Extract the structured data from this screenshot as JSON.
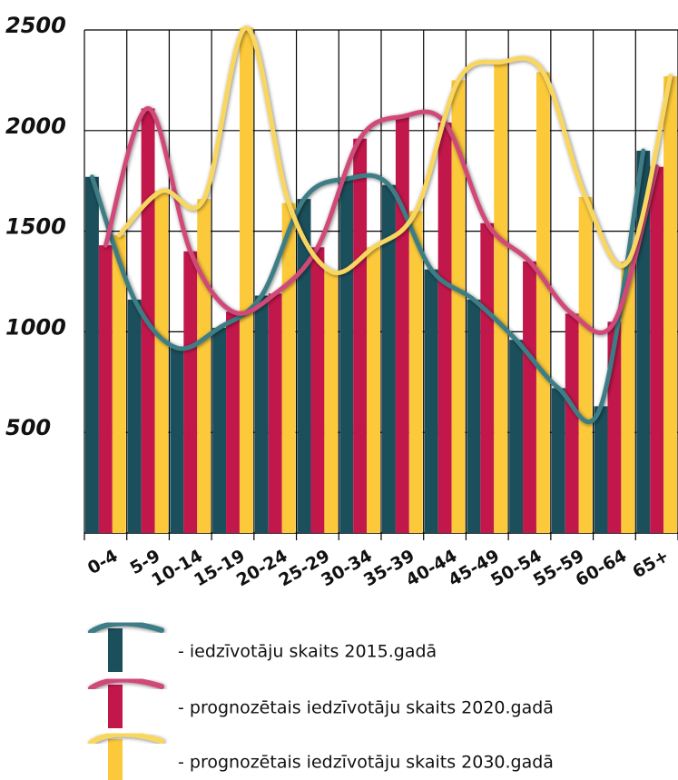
{
  "chart_data": {
    "type": "bar",
    "categories": [
      "0-4",
      "5-9",
      "10-14",
      "15-19",
      "20-24",
      "25-29",
      "30-34",
      "35-39",
      "40-44",
      "45-49",
      "50-54",
      "55-59",
      "60-64",
      "65+"
    ],
    "series": [
      {
        "name": "- iedzīvotāju skaits 2015.gadā",
        "color": "#1b4f5b",
        "curve_color": "#3e7e86",
        "values": [
          1770,
          1160,
          920,
          1020,
          1180,
          1660,
          1760,
          1730,
          1310,
          1160,
          960,
          720,
          630,
          1900
        ]
      },
      {
        "name": "- prognozētais iedzīvotāju skaits 2020.gadā",
        "color": "#c2174b",
        "curve_color": "#d04a79",
        "values": [
          1430,
          2110,
          1400,
          1100,
          1190,
          1420,
          1960,
          2070,
          2040,
          1540,
          1350,
          1090,
          1050,
          1820
        ]
      },
      {
        "name": "- prognozētais iedzīvotāju skaits 2030.gadā",
        "color": "#fcc93a",
        "curve_color": "#f8d660",
        "values": [
          1480,
          1700,
          1660,
          2510,
          1640,
          1300,
          1420,
          1600,
          2250,
          2340,
          2290,
          1670,
          1350,
          2270
        ]
      }
    ],
    "ylim": [
      0,
      2500
    ],
    "yticks": [
      500,
      1000,
      1500,
      2000,
      2500
    ],
    "grid": true
  }
}
